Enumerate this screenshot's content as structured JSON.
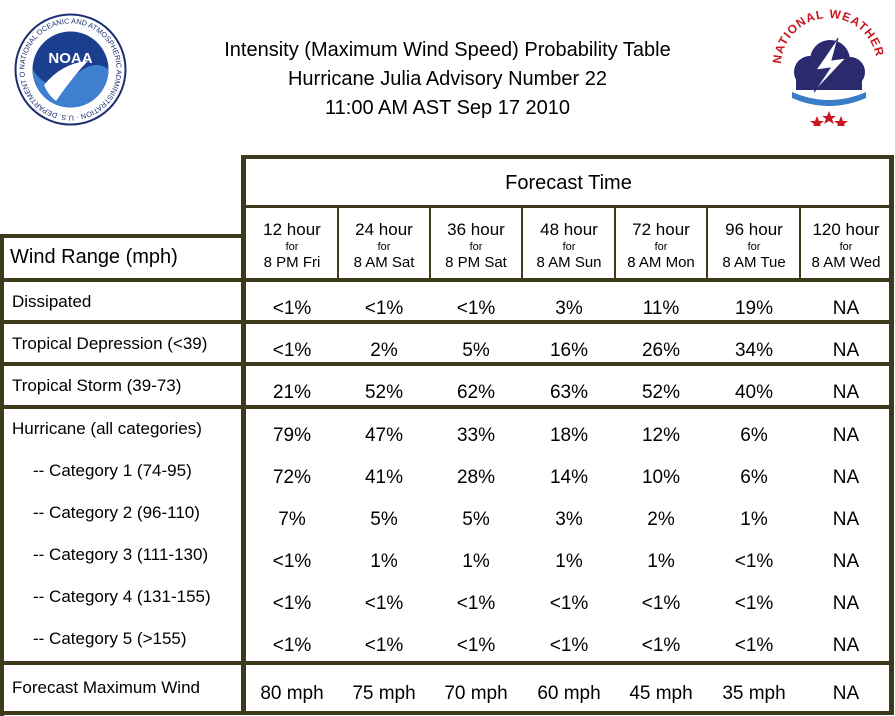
{
  "header": {
    "title_line1": "Intensity (Maximum Wind Speed) Probability Table",
    "title_line2": "Hurricane Julia Advisory Number 22",
    "title_line3": "11:00 AM AST Sep 17 2010",
    "noaa_logo_text": "NOAA",
    "noaa_ring_text": "NATIONAL OCEANIC AND ATMOSPHERIC ADMINISTRATION · U.S. DEPARTMENT OF COMMERCE",
    "nws_ring_text": "NATIONAL WEATHER SERVICE"
  },
  "table": {
    "forecast_time_label": "Forecast Time",
    "wind_range_label": "Wind Range (mph)",
    "columns": [
      {
        "hours": "12 hour",
        "for": "for",
        "when": "8 PM Fri"
      },
      {
        "hours": "24 hour",
        "for": "for",
        "when": "8 AM Sat"
      },
      {
        "hours": "36 hour",
        "for": "for",
        "when": "8 PM Sat"
      },
      {
        "hours": "48 hour",
        "for": "for",
        "when": "8 AM Sun"
      },
      {
        "hours": "72 hour",
        "for": "for",
        "when": "8 AM Mon"
      },
      {
        "hours": "96 hour",
        "for": "for",
        "when": "8 AM Tue"
      },
      {
        "hours": "120 hour",
        "for": "for",
        "when": "8 AM Wed"
      }
    ],
    "rows": [
      {
        "label": "Dissipated",
        "values": [
          "<1%",
          "<1%",
          "<1%",
          "3%",
          "11%",
          "19%",
          "NA"
        ]
      },
      {
        "label": "Tropical Depression (<39)",
        "values": [
          "<1%",
          "2%",
          "5%",
          "16%",
          "26%",
          "34%",
          "NA"
        ]
      },
      {
        "label": "Tropical Storm (39-73)",
        "values": [
          "21%",
          "52%",
          "62%",
          "63%",
          "52%",
          "40%",
          "NA"
        ]
      },
      {
        "label": "Hurricane (all categories)",
        "values": [
          "79%",
          "47%",
          "33%",
          "18%",
          "12%",
          "6%",
          "NA"
        ]
      },
      {
        "label": "-- Category 1 (74-95)",
        "values": [
          "72%",
          "41%",
          "28%",
          "14%",
          "10%",
          "6%",
          "NA"
        ]
      },
      {
        "label": "-- Category 2 (96-110)",
        "values": [
          "7%",
          "5%",
          "5%",
          "3%",
          "2%",
          "1%",
          "NA"
        ]
      },
      {
        "label": "-- Category 3 (111-130)",
        "values": [
          "<1%",
          "1%",
          "1%",
          "1%",
          "1%",
          "<1%",
          "NA"
        ]
      },
      {
        "label": "-- Category 4 (131-155)",
        "values": [
          "<1%",
          "<1%",
          "<1%",
          "<1%",
          "<1%",
          "<1%",
          "NA"
        ]
      },
      {
        "label": "-- Category 5 (>155)",
        "values": [
          "<1%",
          "<1%",
          "<1%",
          "<1%",
          "<1%",
          "<1%",
          "NA"
        ]
      },
      {
        "label": "Forecast Maximum Wind",
        "values": [
          "80 mph",
          "75 mph",
          "70 mph",
          "60 mph",
          "45 mph",
          "35 mph",
          "NA"
        ]
      }
    ]
  }
}
